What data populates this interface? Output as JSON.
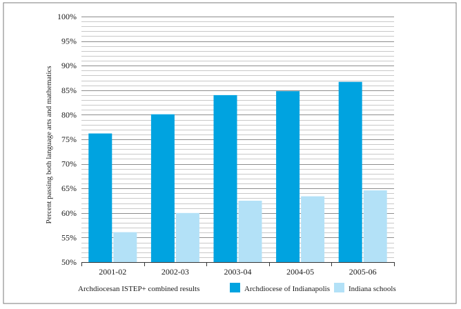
{
  "chart_data": {
    "type": "bar",
    "title": "",
    "xlabel": "",
    "ylabel": "Percent passing both language arts and mathematics",
    "caption": "Archdiocesan ISTEP+ combined results",
    "categories": [
      "2001-02",
      "2002-03",
      "2003-04",
      "2004-05",
      "2005-06"
    ],
    "ylim": [
      50,
      100
    ],
    "yticks": [
      "50%",
      "55%",
      "60%",
      "65%",
      "70%",
      "75%",
      "80%",
      "85%",
      "90%",
      "95%",
      "100%"
    ],
    "grid": true,
    "legend_position": "bottom",
    "series": [
      {
        "name": "Archdiocese of Indianapolis",
        "color": "#00a3e0",
        "values": [
          76.2,
          80.1,
          84.0,
          84.8,
          86.7
        ]
      },
      {
        "name": "Indiana schools",
        "color": "#b3e1f7",
        "values": [
          56.1,
          60.0,
          62.5,
          63.4,
          64.6
        ]
      }
    ]
  }
}
